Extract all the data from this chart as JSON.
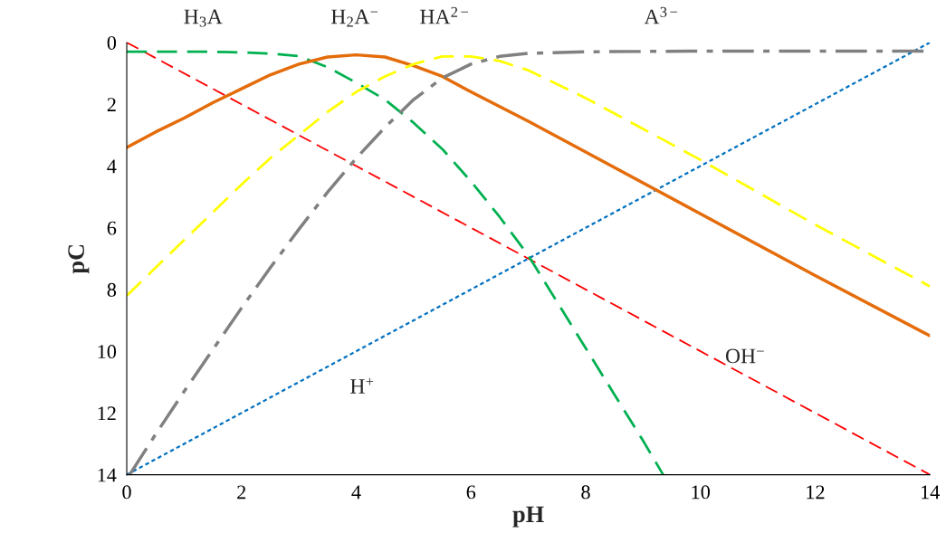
{
  "chart_data": {
    "type": "line",
    "xlabel": "pH",
    "ylabel": "pC",
    "xlim": [
      0,
      14
    ],
    "ylim": [
      14,
      0
    ],
    "xticks": [
      0,
      2,
      4,
      6,
      8,
      10,
      12,
      14
    ],
    "yticks": [
      0,
      2,
      4,
      6,
      8,
      10,
      12,
      14
    ],
    "grid": false,
    "legend": false,
    "marker": "none",
    "series": [
      {
        "color": "#0070c0",
        "line_style": "dotted",
        "x": [
          0,
          14
        ],
        "values": [
          14,
          0
        ]
      },
      {
        "color": "#ff0000",
        "line_style": "dashed",
        "x": [
          0,
          14
        ],
        "values": [
          0,
          14
        ]
      },
      {
        "color": "#00b050",
        "line_style": "dashed",
        "x": [
          0,
          0.5,
          1,
          1.5,
          2,
          2.5,
          3,
          3.5,
          4,
          4.5,
          5,
          5.5,
          6,
          6.5,
          7,
          7.5,
          8,
          8.5,
          9,
          9.35
        ],
        "values": [
          0.3,
          0.3,
          0.3,
          0.3,
          0.32,
          0.36,
          0.44,
          0.8,
          1.3,
          1.85,
          2.6,
          3.45,
          4.5,
          5.65,
          6.9,
          8.4,
          9.9,
          11.4,
          12.9,
          14
        ]
      },
      {
        "color": "#e46c0a",
        "line_style": "solid",
        "x": [
          0,
          0.5,
          1,
          1.5,
          2,
          2.5,
          3,
          3.5,
          4,
          4.5,
          5,
          5.5,
          6,
          7,
          8,
          10,
          12,
          14
        ],
        "values": [
          3.4,
          2.9,
          2.45,
          1.95,
          1.5,
          1.05,
          0.7,
          0.47,
          0.4,
          0.47,
          0.75,
          1.1,
          1.6,
          2.55,
          3.55,
          5.55,
          7.55,
          9.5
        ]
      },
      {
        "color": "#ffff00",
        "line_style": "dashed",
        "x": [
          0,
          0.5,
          1,
          1.5,
          2,
          2.5,
          3,
          3.5,
          4,
          4.5,
          5,
          5.5,
          6,
          6.5,
          7,
          8,
          9,
          10,
          12,
          14
        ],
        "values": [
          8.2,
          7.3,
          6.4,
          5.5,
          4.6,
          3.75,
          3.0,
          2.25,
          1.6,
          1.1,
          0.7,
          0.45,
          0.45,
          0.6,
          0.9,
          1.8,
          2.8,
          3.8,
          5.9,
          7.9
        ]
      },
      {
        "color": "#808080",
        "line_style": "dashdot",
        "x": [
          0.05,
          0.5,
          1,
          1.5,
          2,
          2.5,
          3,
          3.5,
          4,
          4.5,
          5,
          5.5,
          6,
          6.5,
          7,
          8,
          10,
          14
        ],
        "values": [
          14,
          12.7,
          11.3,
          9.95,
          8.6,
          7.3,
          6.05,
          4.85,
          3.75,
          2.75,
          1.85,
          1.15,
          0.7,
          0.45,
          0.35,
          0.3,
          0.28,
          0.28
        ]
      }
    ],
    "annotations": [
      "H$_{3}$A",
      "H$_{2}$A$^{−}$",
      "HA$^{2−}$",
      "A$^{3−}$",
      "OH$^{−}$",
      "H$^{+}$"
    ]
  }
}
